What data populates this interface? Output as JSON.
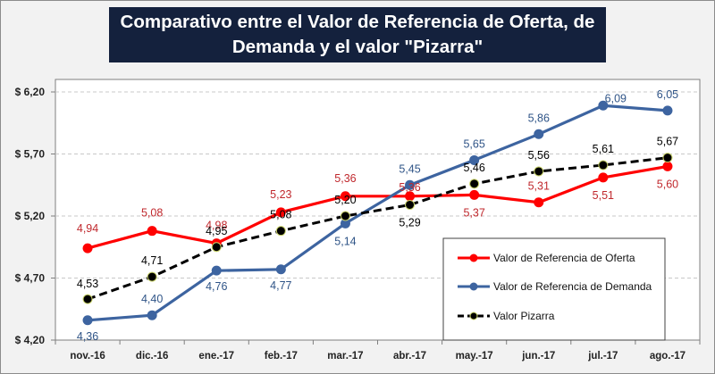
{
  "chart_data": {
    "type": "line",
    "title_lines": [
      "Comparativo entre el Valor de Referencia de Oferta, de",
      "Demanda y el valor \"Pizarra\""
    ],
    "categories": [
      "nov.-16",
      "dic.-16",
      "ene.-17",
      "feb.-17",
      "mar.-17",
      "abr.-17",
      "may.-17",
      "jun.-17",
      "jul.-17",
      "ago.-17"
    ],
    "ylim": [
      4.2,
      6.2
    ],
    "yticks": [
      4.2,
      4.7,
      5.2,
      5.7,
      6.2
    ],
    "ytick_labels": [
      "$ 4,20",
      "$ 4,70",
      "$ 5,20",
      "$ 5,70",
      "$ 6,20"
    ],
    "grid": true,
    "legend_position": "bottom-right-inside",
    "series": [
      {
        "name": "Valor de Referencia de Oferta",
        "color": "#ff0000",
        "style": "solid",
        "values": [
          4.94,
          5.08,
          4.98,
          5.23,
          5.36,
          5.36,
          5.37,
          5.31,
          5.51,
          5.6
        ],
        "labels": [
          "4,94",
          "5,08",
          "4,98",
          "5,23",
          "5,36",
          "5,36",
          "5,37",
          "5,31",
          "5,51",
          "5,60"
        ],
        "label_color": "#c0282d"
      },
      {
        "name": "Valor de Referencia de Demanda",
        "color": "#3d64a0",
        "style": "solid",
        "values": [
          4.36,
          4.4,
          4.76,
          4.77,
          5.14,
          5.45,
          5.65,
          5.86,
          6.09,
          6.05
        ],
        "labels": [
          "4,36",
          "4,40",
          "4,76",
          "4,77",
          "5,14",
          "5,45",
          "5,65",
          "5,86",
          "6,09",
          "6,05"
        ],
        "label_color": "#2f5487"
      },
      {
        "name": "Valor Pizarra",
        "color": "#000000",
        "style": "dashed",
        "values": [
          4.53,
          4.71,
          4.95,
          5.08,
          5.2,
          5.29,
          5.46,
          5.56,
          5.61,
          5.67
        ],
        "labels": [
          "4,53",
          "4,71",
          "4,95",
          "5,08",
          "5,20",
          "5,29",
          "5,46",
          "5,56",
          "5,61",
          "5,67"
        ],
        "label_color": "#000000"
      }
    ]
  }
}
